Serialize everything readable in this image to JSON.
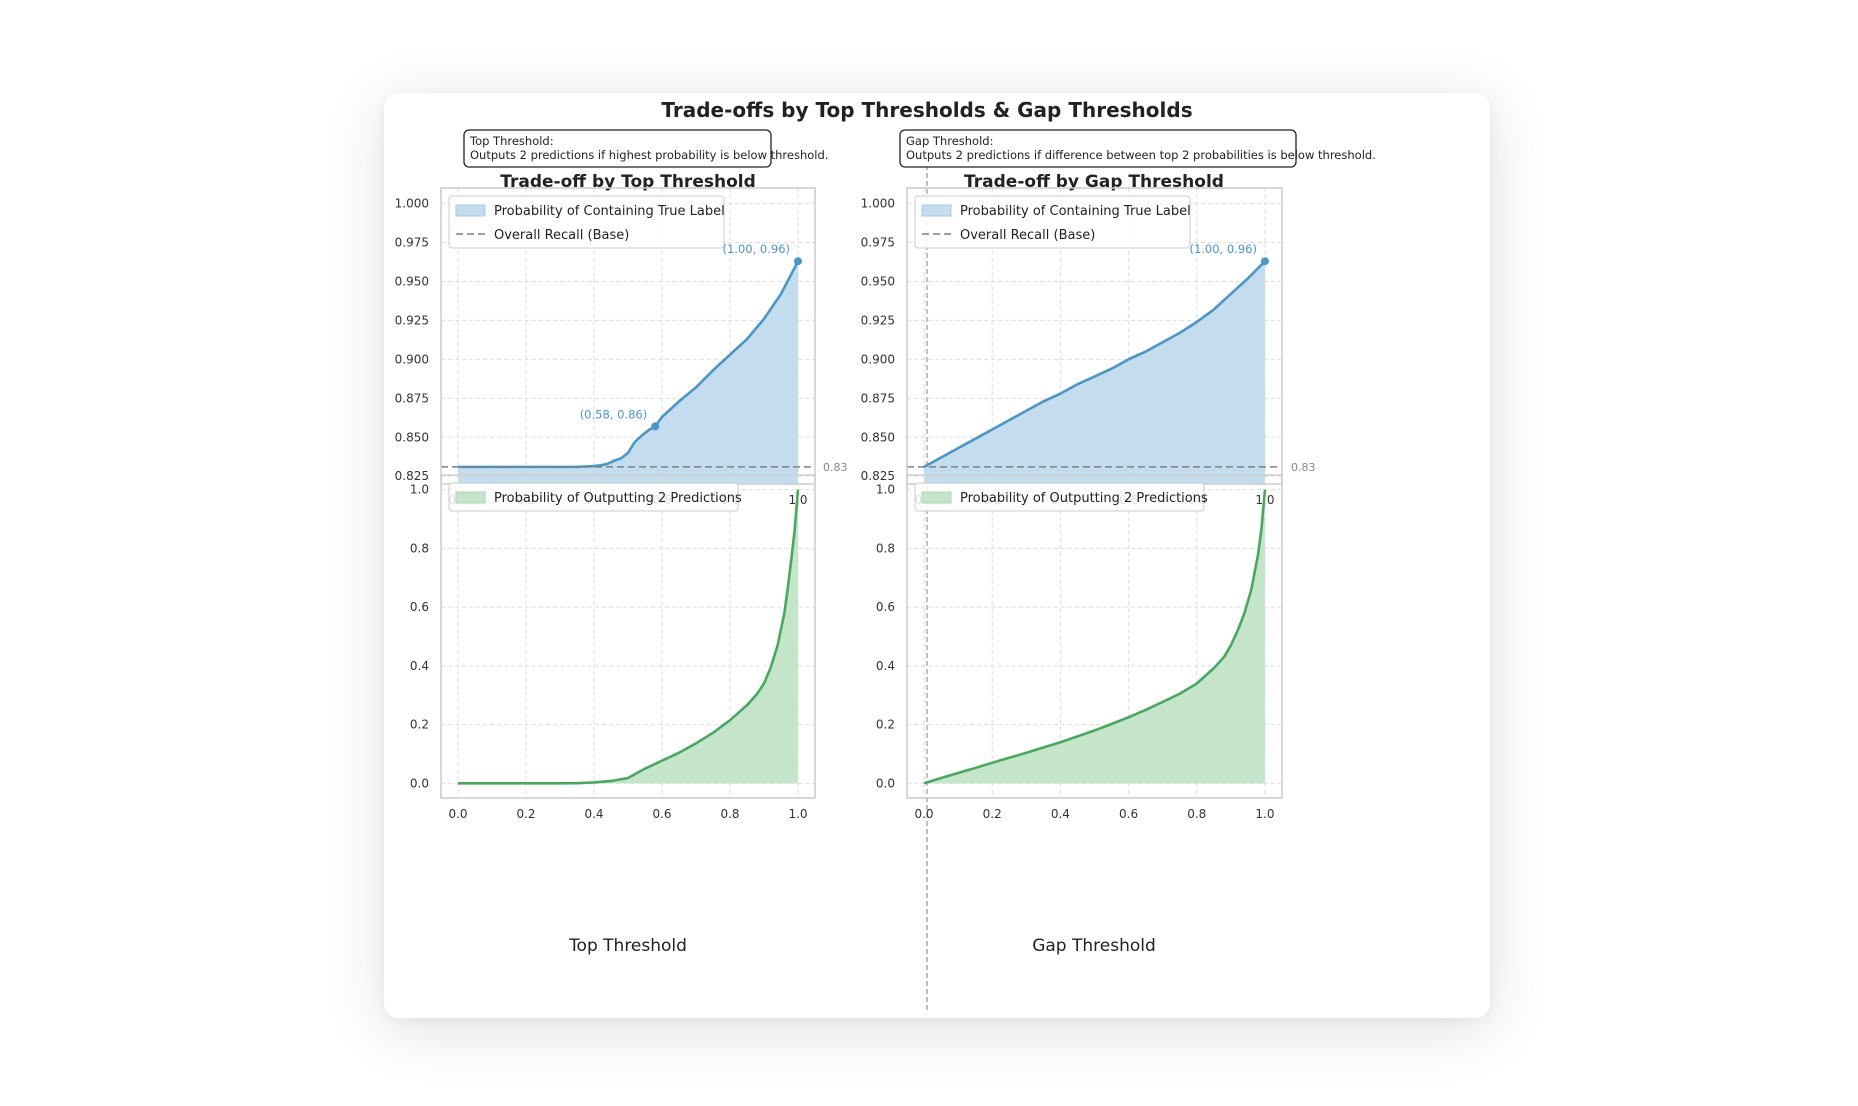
{
  "figure": {
    "title": "Trade-offs by Top Thresholds & Gap Thresholds",
    "colors": {
      "blue_line": "#4a96c8",
      "blue_fill": "#c3dcee",
      "green_line": "#48a95e",
      "green_fill": "#c5e5cb",
      "base_line": "#808080",
      "grid": "#dddddd",
      "frame": "#cccccc"
    }
  },
  "panels": [
    {
      "id": "top",
      "title": "Trade-off by Top Threshold",
      "info": {
        "heading": "Top Threshold:",
        "text": "Outputs 2 predictions if highest probability is below threshold."
      },
      "xlabel": "Top Threshold",
      "recall_chart": {
        "type": "area",
        "xlim": [
          -0.05,
          1.05
        ],
        "ylim": [
          0.82,
          1.01
        ],
        "xticks": [
          "0.0",
          "0.2",
          "0.4",
          "0.6",
          "0.8",
          "1.0"
        ],
        "yticks": [
          "0.825",
          "0.850",
          "0.875",
          "0.900",
          "0.925",
          "0.950",
          "0.975",
          "1.000"
        ],
        "grid": true,
        "legend_position": "upper-left",
        "legend": [
          "Probability of Containing True Label",
          "Overall Recall (Base)"
        ],
        "base_value": 0.831,
        "base_label": "0.83",
        "series": {
          "x": [
            0.0,
            0.1,
            0.2,
            0.3,
            0.35,
            0.4,
            0.42,
            0.44,
            0.46,
            0.48,
            0.5,
            0.52,
            0.54,
            0.56,
            0.58,
            0.6,
            0.65,
            0.7,
            0.75,
            0.8,
            0.85,
            0.9,
            0.95,
            1.0
          ],
          "y": [
            0.831,
            0.831,
            0.831,
            0.831,
            0.831,
            0.8315,
            0.832,
            0.833,
            0.835,
            0.8365,
            0.84,
            0.847,
            0.851,
            0.8545,
            0.857,
            0.863,
            0.873,
            0.882,
            0.893,
            0.903,
            0.913,
            0.926,
            0.942,
            0.963
          ]
        },
        "annotations": [
          {
            "x": 0.58,
            "y": 0.857,
            "label": "(0.58, 0.86)",
            "position": "upper-left"
          },
          {
            "x": 1.0,
            "y": 0.963,
            "label": "(1.00, 0.96)",
            "position": "upper-left"
          }
        ]
      },
      "prob_chart": {
        "type": "area",
        "xlim": [
          -0.05,
          1.05
        ],
        "ylim": [
          -0.05,
          1.05
        ],
        "xticks": [
          "0.0",
          "0.2",
          "0.4",
          "0.6",
          "0.8",
          "1.0"
        ],
        "yticks": [
          "0.0",
          "0.2",
          "0.4",
          "0.6",
          "0.8",
          "1.0"
        ],
        "grid": true,
        "legend_position": "upper-left",
        "legend": [
          "Probability of Outputting 2 Predictions"
        ],
        "series": {
          "x": [
            0.0,
            0.1,
            0.2,
            0.3,
            0.35,
            0.4,
            0.45,
            0.5,
            0.55,
            0.6,
            0.65,
            0.7,
            0.75,
            0.8,
            0.85,
            0.88,
            0.9,
            0.92,
            0.94,
            0.96,
            0.97,
            0.98,
            0.99,
            1.0
          ],
          "y": [
            0.0,
            0.0,
            0.0,
            0.0,
            0.0005,
            0.003,
            0.008,
            0.018,
            0.05,
            0.077,
            0.104,
            0.136,
            0.172,
            0.215,
            0.266,
            0.305,
            0.34,
            0.395,
            0.47,
            0.58,
            0.665,
            0.76,
            0.86,
            1.0
          ]
        }
      }
    },
    {
      "id": "gap",
      "title": "Trade-off by Gap Threshold",
      "info": {
        "heading": "Gap Threshold:",
        "text": "Outputs 2 predictions if difference between top 2 probabilities is below threshold."
      },
      "xlabel": "Gap Threshold",
      "recall_chart": {
        "type": "area",
        "xlim": [
          -0.05,
          1.05
        ],
        "ylim": [
          0.82,
          1.01
        ],
        "xticks": [
          "0.0",
          "0.2",
          "0.4",
          "0.6",
          "0.8",
          "1.0"
        ],
        "yticks": [
          "0.825",
          "0.850",
          "0.875",
          "0.900",
          "0.925",
          "0.950",
          "0.975",
          "1.000"
        ],
        "grid": true,
        "legend_position": "upper-left",
        "legend": [
          "Probability of Containing True Label",
          "Overall Recall (Base)"
        ],
        "base_value": 0.831,
        "base_label": "0.83",
        "series": {
          "x": [
            0.0,
            0.05,
            0.1,
            0.15,
            0.2,
            0.25,
            0.3,
            0.35,
            0.4,
            0.45,
            0.5,
            0.55,
            0.6,
            0.65,
            0.7,
            0.75,
            0.8,
            0.85,
            0.9,
            0.95,
            1.0
          ],
          "y": [
            0.831,
            0.837,
            0.843,
            0.849,
            0.855,
            0.861,
            0.867,
            0.873,
            0.878,
            0.884,
            0.889,
            0.894,
            0.9,
            0.905,
            0.911,
            0.917,
            0.924,
            0.932,
            0.942,
            0.952,
            0.963
          ]
        },
        "annotations": [
          {
            "x": 1.0,
            "y": 0.963,
            "label": "(1.00, 0.96)",
            "position": "upper-left"
          }
        ]
      },
      "prob_chart": {
        "type": "area",
        "xlim": [
          -0.05,
          1.05
        ],
        "ylim": [
          -0.05,
          1.05
        ],
        "xticks": [
          "0.0",
          "0.2",
          "0.4",
          "0.6",
          "0.8",
          "1.0"
        ],
        "yticks": [
          "0.0",
          "0.2",
          "0.4",
          "0.6",
          "0.8",
          "1.0"
        ],
        "grid": true,
        "legend_position": "upper-left",
        "legend": [
          "Probability of Outputting 2 Predictions"
        ],
        "series": {
          "x": [
            0.0,
            0.05,
            0.1,
            0.15,
            0.2,
            0.25,
            0.3,
            0.35,
            0.4,
            0.45,
            0.5,
            0.55,
            0.6,
            0.65,
            0.7,
            0.75,
            0.8,
            0.85,
            0.88,
            0.9,
            0.92,
            0.94,
            0.96,
            0.98,
            0.99,
            1.0
          ],
          "y": [
            0.0,
            0.018,
            0.035,
            0.052,
            0.07,
            0.087,
            0.104,
            0.122,
            0.14,
            0.16,
            0.18,
            0.202,
            0.225,
            0.25,
            0.277,
            0.305,
            0.34,
            0.392,
            0.43,
            0.47,
            0.52,
            0.58,
            0.66,
            0.78,
            0.87,
            1.0
          ]
        }
      }
    }
  ]
}
